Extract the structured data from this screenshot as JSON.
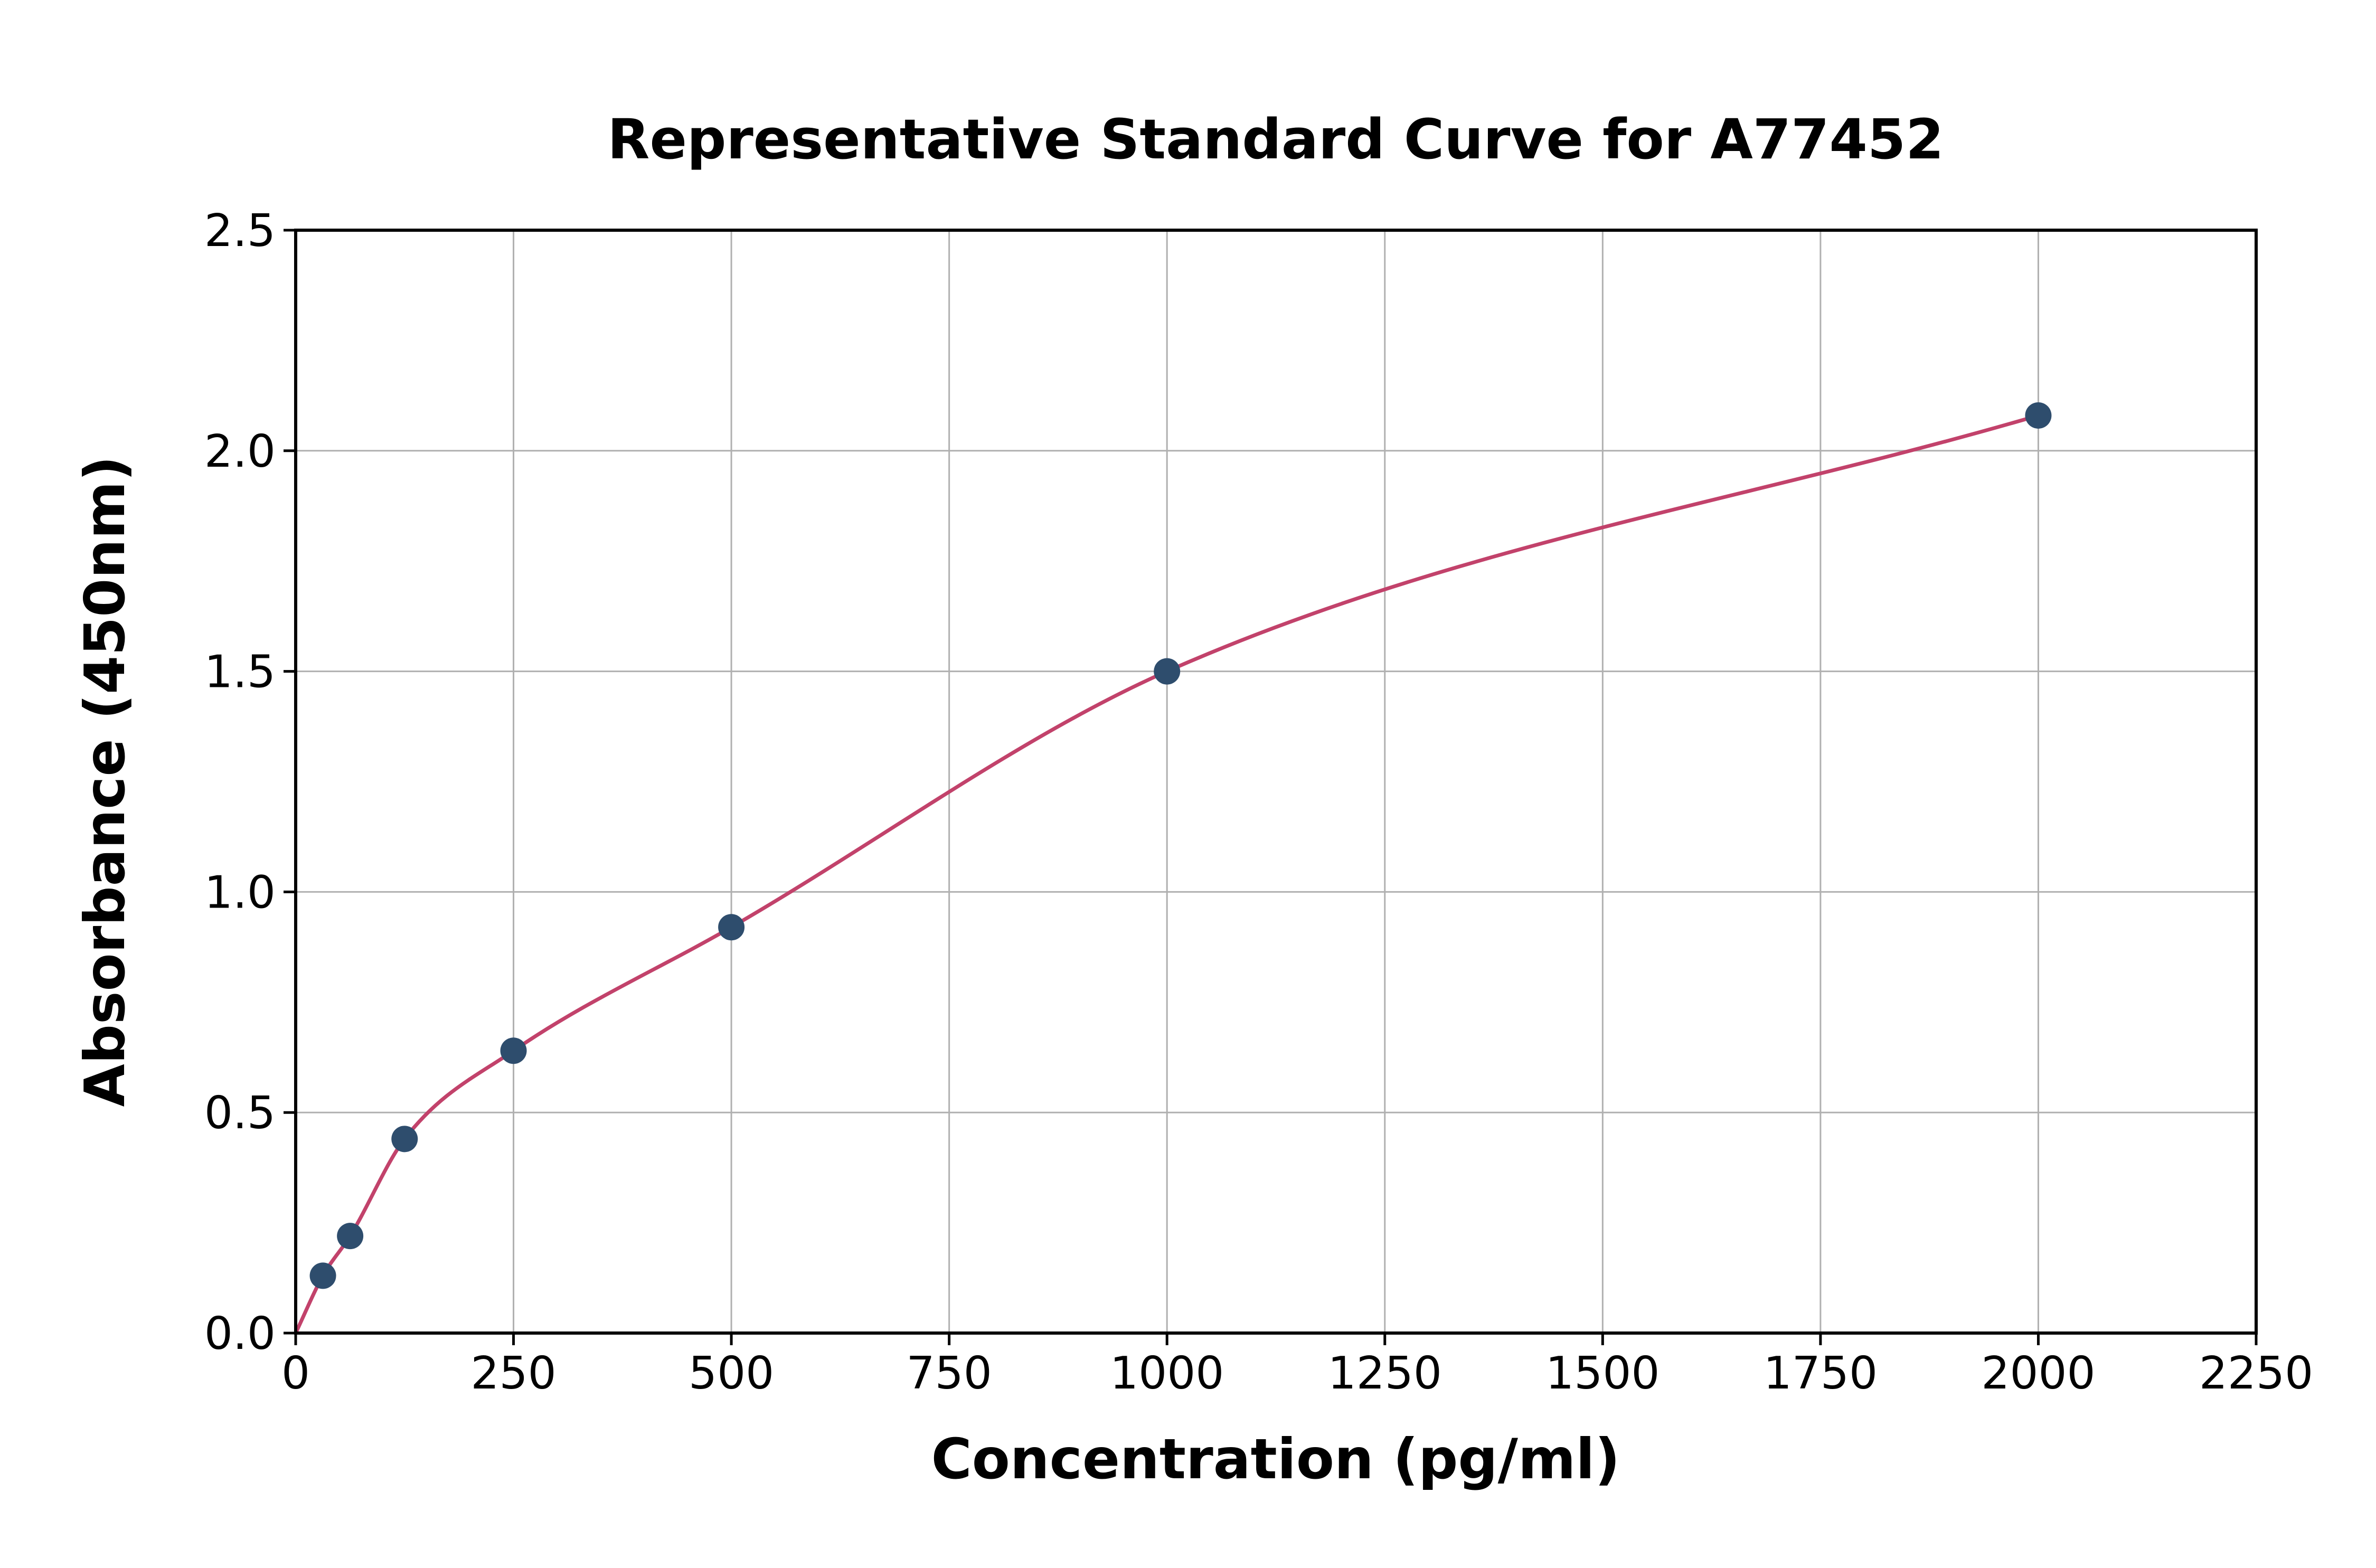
{
  "chart_data": {
    "type": "scatter",
    "title": "Representative Standard Curve for A77452",
    "xlabel": "Concentration (pg/ml)",
    "ylabel": "Absorbance (450nm)",
    "xlim": [
      0,
      2250
    ],
    "ylim": [
      0,
      2.5
    ],
    "x_ticks": [
      0,
      250,
      500,
      750,
      1000,
      1250,
      1500,
      1750,
      2000,
      2250
    ],
    "x_tick_labels": [
      "0",
      "250",
      "500",
      "750",
      "1000",
      "1250",
      "1500",
      "1750",
      "2000",
      "2250"
    ],
    "y_ticks": [
      0,
      0.5,
      1.0,
      1.5,
      2.0,
      2.5
    ],
    "y_tick_labels": [
      "0.0",
      "0.5",
      "1.0",
      "1.5",
      "2.0",
      "2.5"
    ],
    "grid": true,
    "legend_position": "none",
    "series": [
      {
        "name": "Standard curve",
        "points": [
          [
            31.25,
            0.13
          ],
          [
            62.5,
            0.22
          ],
          [
            125,
            0.44
          ],
          [
            250,
            0.64
          ],
          [
            500,
            0.92
          ],
          [
            1000,
            1.5
          ],
          [
            2000,
            2.08
          ]
        ],
        "curve_start": [
          0,
          0
        ],
        "marker_color": "#2e4d6d",
        "curve_color": "#c2426b"
      }
    ],
    "grid_color": "#b0b0b0",
    "axis_color": "#000000",
    "background_color": "#ffffff"
  }
}
